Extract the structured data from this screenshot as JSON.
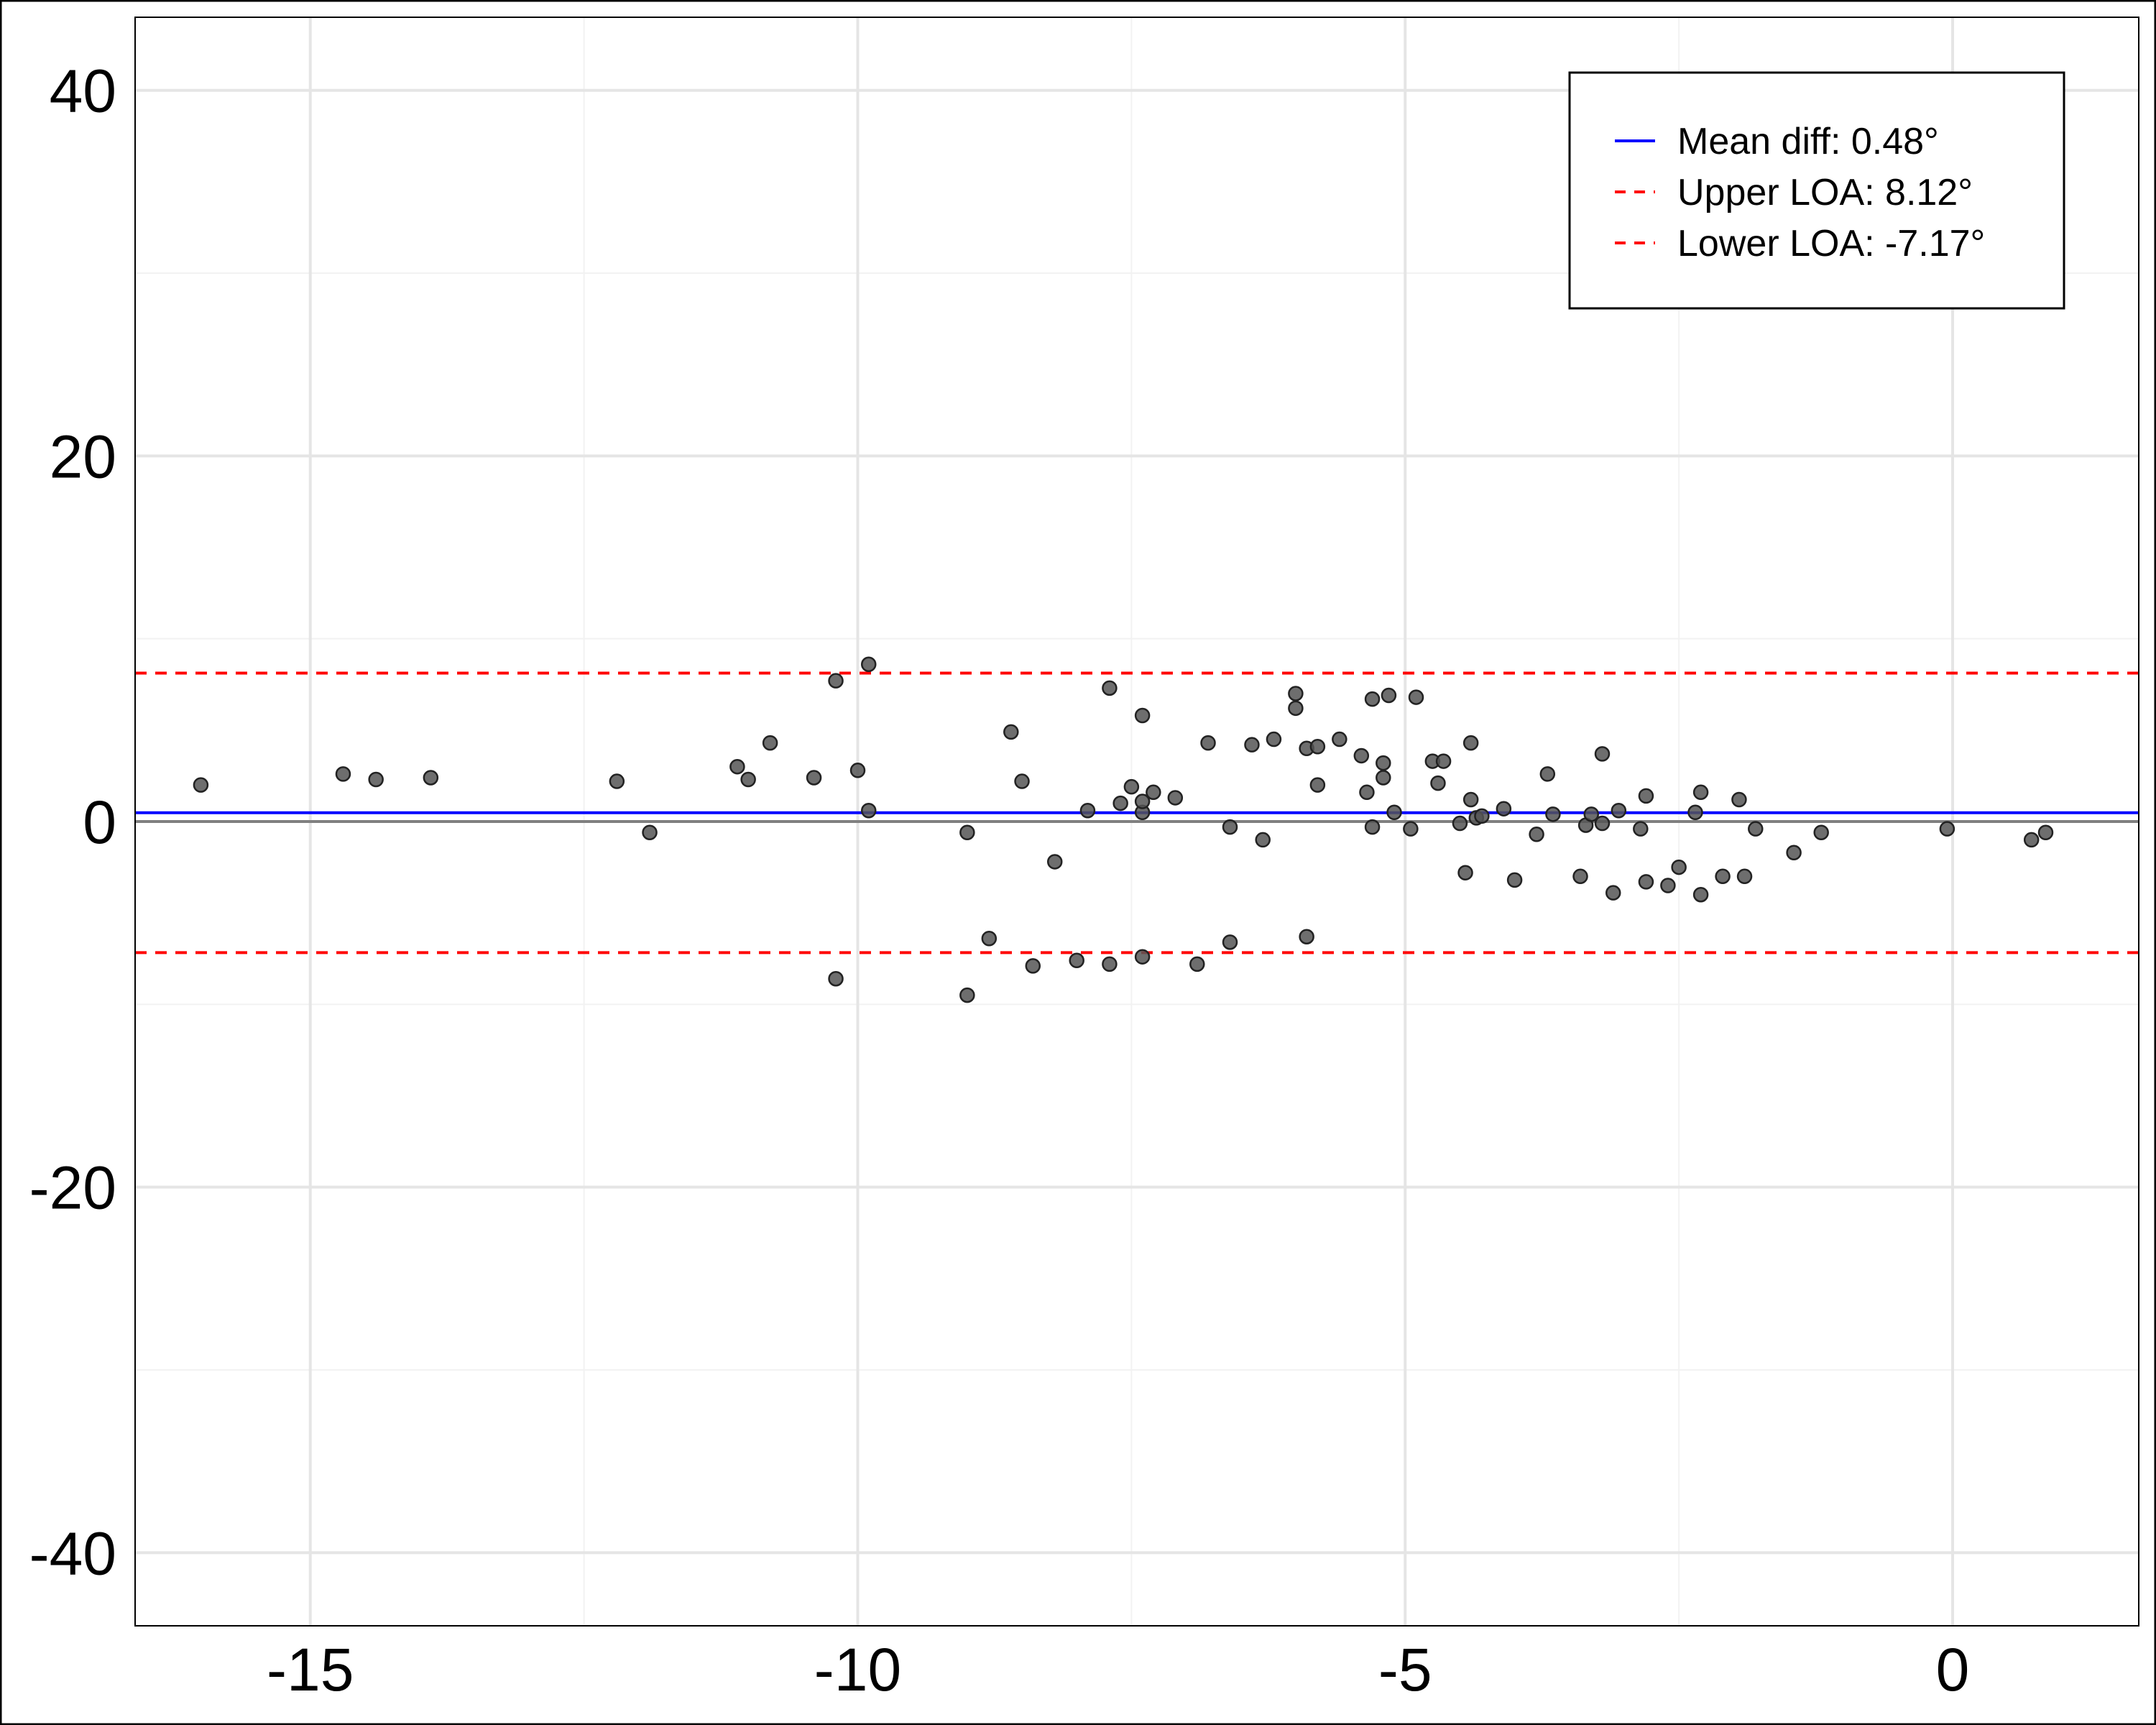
{
  "chart_data": {
    "type": "scatter",
    "title": "",
    "xlabel": "",
    "ylabel": "",
    "xlim": [
      -16.6,
      1.7
    ],
    "ylim": [
      -44,
      44
    ],
    "xticks": [
      -15,
      -10,
      -5,
      0
    ],
    "yticks": [
      40,
      20,
      0,
      -20,
      -40
    ],
    "xtick_labels": [
      "-15",
      "-10",
      "-5",
      "0"
    ],
    "ytick_labels": [
      "40",
      "20",
      "0",
      "-20",
      "-40"
    ],
    "grid": true,
    "legend_position": "top-right",
    "reference_lines": [
      {
        "label": "Mean diff: 0.48°",
        "y": 0.48,
        "color": "#0000ff",
        "style": "solid"
      },
      {
        "label": "Upper LOA: 8.12°",
        "y": 8.12,
        "color": "#ff0000",
        "style": "dashed"
      },
      {
        "label": "Lower LOA: -7.17°",
        "y": -7.17,
        "color": "#ff0000",
        "style": "dashed"
      }
    ],
    "zero_line": {
      "y": 0,
      "color": "#808080"
    },
    "points_color": "#555555",
    "points": [
      [
        -16.0,
        2.0
      ],
      [
        -14.7,
        2.6
      ],
      [
        -14.4,
        2.3
      ],
      [
        -13.9,
        2.4
      ],
      [
        -12.2,
        2.2
      ],
      [
        -11.9,
        -0.6
      ],
      [
        -11.1,
        3.0
      ],
      [
        -11.0,
        2.3
      ],
      [
        -10.8,
        4.3
      ],
      [
        -10.4,
        2.4
      ],
      [
        -10.2,
        7.7
      ],
      [
        -10.2,
        -8.6
      ],
      [
        -10.0,
        2.8
      ],
      [
        -9.9,
        8.6
      ],
      [
        -9.9,
        0.6
      ],
      [
        -9.0,
        -0.6
      ],
      [
        -9.0,
        -9.5
      ],
      [
        -8.8,
        -6.4
      ],
      [
        -8.6,
        4.9
      ],
      [
        -8.5,
        2.2
      ],
      [
        -8.4,
        -7.9
      ],
      [
        -8.2,
        -2.2
      ],
      [
        -8.0,
        -7.6
      ],
      [
        -7.9,
        0.6
      ],
      [
        -7.7,
        7.3
      ],
      [
        -7.7,
        -7.8
      ],
      [
        -7.6,
        1.0
      ],
      [
        -7.5,
        1.9
      ],
      [
        -7.4,
        0.5
      ],
      [
        -7.4,
        1.1
      ],
      [
        -7.4,
        5.8
      ],
      [
        -7.4,
        -7.4
      ],
      [
        -7.3,
        1.6
      ],
      [
        -7.1,
        1.3
      ],
      [
        -6.9,
        -7.8
      ],
      [
        -6.8,
        4.3
      ],
      [
        -6.6,
        -6.6
      ],
      [
        -6.6,
        -0.3
      ],
      [
        -6.4,
        4.2
      ],
      [
        -6.3,
        -1.0
      ],
      [
        -6.2,
        4.5
      ],
      [
        -6.0,
        7.0
      ],
      [
        -6.0,
        6.2
      ],
      [
        -5.9,
        4.0
      ],
      [
        -5.9,
        -6.3
      ],
      [
        -5.8,
        4.1
      ],
      [
        -5.8,
        2.0
      ],
      [
        -5.6,
        4.5
      ],
      [
        -5.4,
        3.6
      ],
      [
        -5.35,
        1.6
      ],
      [
        -5.3,
        6.7
      ],
      [
        -5.3,
        -0.3
      ],
      [
        -5.2,
        3.2
      ],
      [
        -5.2,
        2.4
      ],
      [
        -5.15,
        6.9
      ],
      [
        -5.1,
        0.5
      ],
      [
        -4.95,
        -0.4
      ],
      [
        -4.9,
        6.8
      ],
      [
        -4.75,
        3.3
      ],
      [
        -4.7,
        2.1
      ],
      [
        -4.65,
        3.3
      ],
      [
        -4.5,
        -0.1
      ],
      [
        -4.45,
        -2.8
      ],
      [
        -4.4,
        4.3
      ],
      [
        -4.4,
        1.2
      ],
      [
        -4.35,
        0.2
      ],
      [
        -4.3,
        0.3
      ],
      [
        -4.1,
        0.7
      ],
      [
        -4.0,
        -3.2
      ],
      [
        -3.8,
        -0.7
      ],
      [
        -3.7,
        2.6
      ],
      [
        -3.65,
        0.4
      ],
      [
        -3.4,
        -3.0
      ],
      [
        -3.35,
        -0.2
      ],
      [
        -3.3,
        0.4
      ],
      [
        -3.2,
        3.7
      ],
      [
        -3.2,
        -0.1
      ],
      [
        -3.1,
        -3.9
      ],
      [
        -3.05,
        0.6
      ],
      [
        -2.85,
        -0.4
      ],
      [
        -2.8,
        1.4
      ],
      [
        -2.8,
        -3.3
      ],
      [
        -2.6,
        -3.5
      ],
      [
        -2.5,
        -2.5
      ],
      [
        -2.35,
        0.5
      ],
      [
        -2.3,
        -4.0
      ],
      [
        -2.3,
        1.6
      ],
      [
        -2.1,
        -3.0
      ],
      [
        -1.95,
        1.2
      ],
      [
        -1.9,
        -3.0
      ],
      [
        -1.8,
        -0.4
      ],
      [
        -1.45,
        -1.7
      ],
      [
        -1.2,
        -0.6
      ],
      [
        -0.05,
        -0.4
      ],
      [
        0.72,
        -1.0
      ],
      [
        0.85,
        -0.6
      ]
    ]
  }
}
